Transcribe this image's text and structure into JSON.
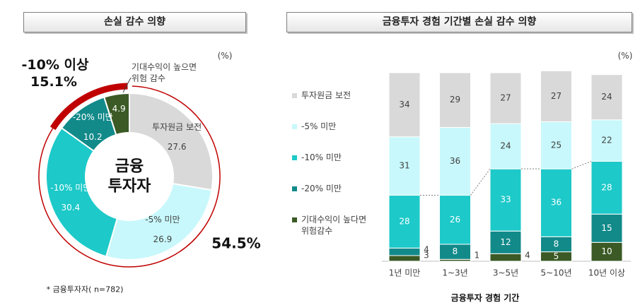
{
  "chart_data": [
    {
      "type": "donut",
      "title": "손실 감수 의향",
      "unit": "(%)",
      "center_label": "금융\n투자자",
      "categories": [
        "투자원금 보전",
        "-5% 미만",
        "-10% 미만",
        "-20% 미만",
        "기대수익이 높으면\n위험 감수"
      ],
      "values": [
        27.6,
        26.9,
        30.4,
        10.2,
        4.9
      ],
      "colors": [
        "#d9d9d9",
        "#c8f8fb",
        "#1dc9c9",
        "#128a8a",
        "#3b5a25"
      ],
      "annotations": [
        {
          "label": "-10% 이상",
          "value": "15.1%"
        },
        {
          "value": "54.5%"
        }
      ],
      "note": "* 금융투자자( n=782)"
    },
    {
      "type": "stacked_bar",
      "title": "금융투자 경험 기간별 손실 감수 의향",
      "unit": "(%)",
      "x_label": "금융투자 경험 기간",
      "categories": [
        "1년 미만",
        "1~3년",
        "3~5년",
        "5~10년",
        "10년 이상"
      ],
      "ylim": [
        0,
        100
      ],
      "series": [
        {
          "name": "기대수익이 높다면\n위험감수",
          "color": "#3b5a25",
          "values": [
            3,
            1,
            4,
            5,
            10
          ]
        },
        {
          "name": "-20% 미만",
          "color": "#128a8a",
          "values": [
            4,
            8,
            12,
            8,
            15
          ]
        },
        {
          "name": "-10% 미만",
          "color": "#1dc9c9",
          "values": [
            28,
            26,
            33,
            36,
            28
          ]
        },
        {
          "name": "-5% 미만",
          "color": "#c8f8fb",
          "values": [
            31,
            36,
            24,
            25,
            22
          ]
        },
        {
          "name": "투자원금 보전",
          "color": "#d9d9d9",
          "values": [
            34,
            29,
            27,
            27,
            24
          ]
        }
      ]
    }
  ]
}
